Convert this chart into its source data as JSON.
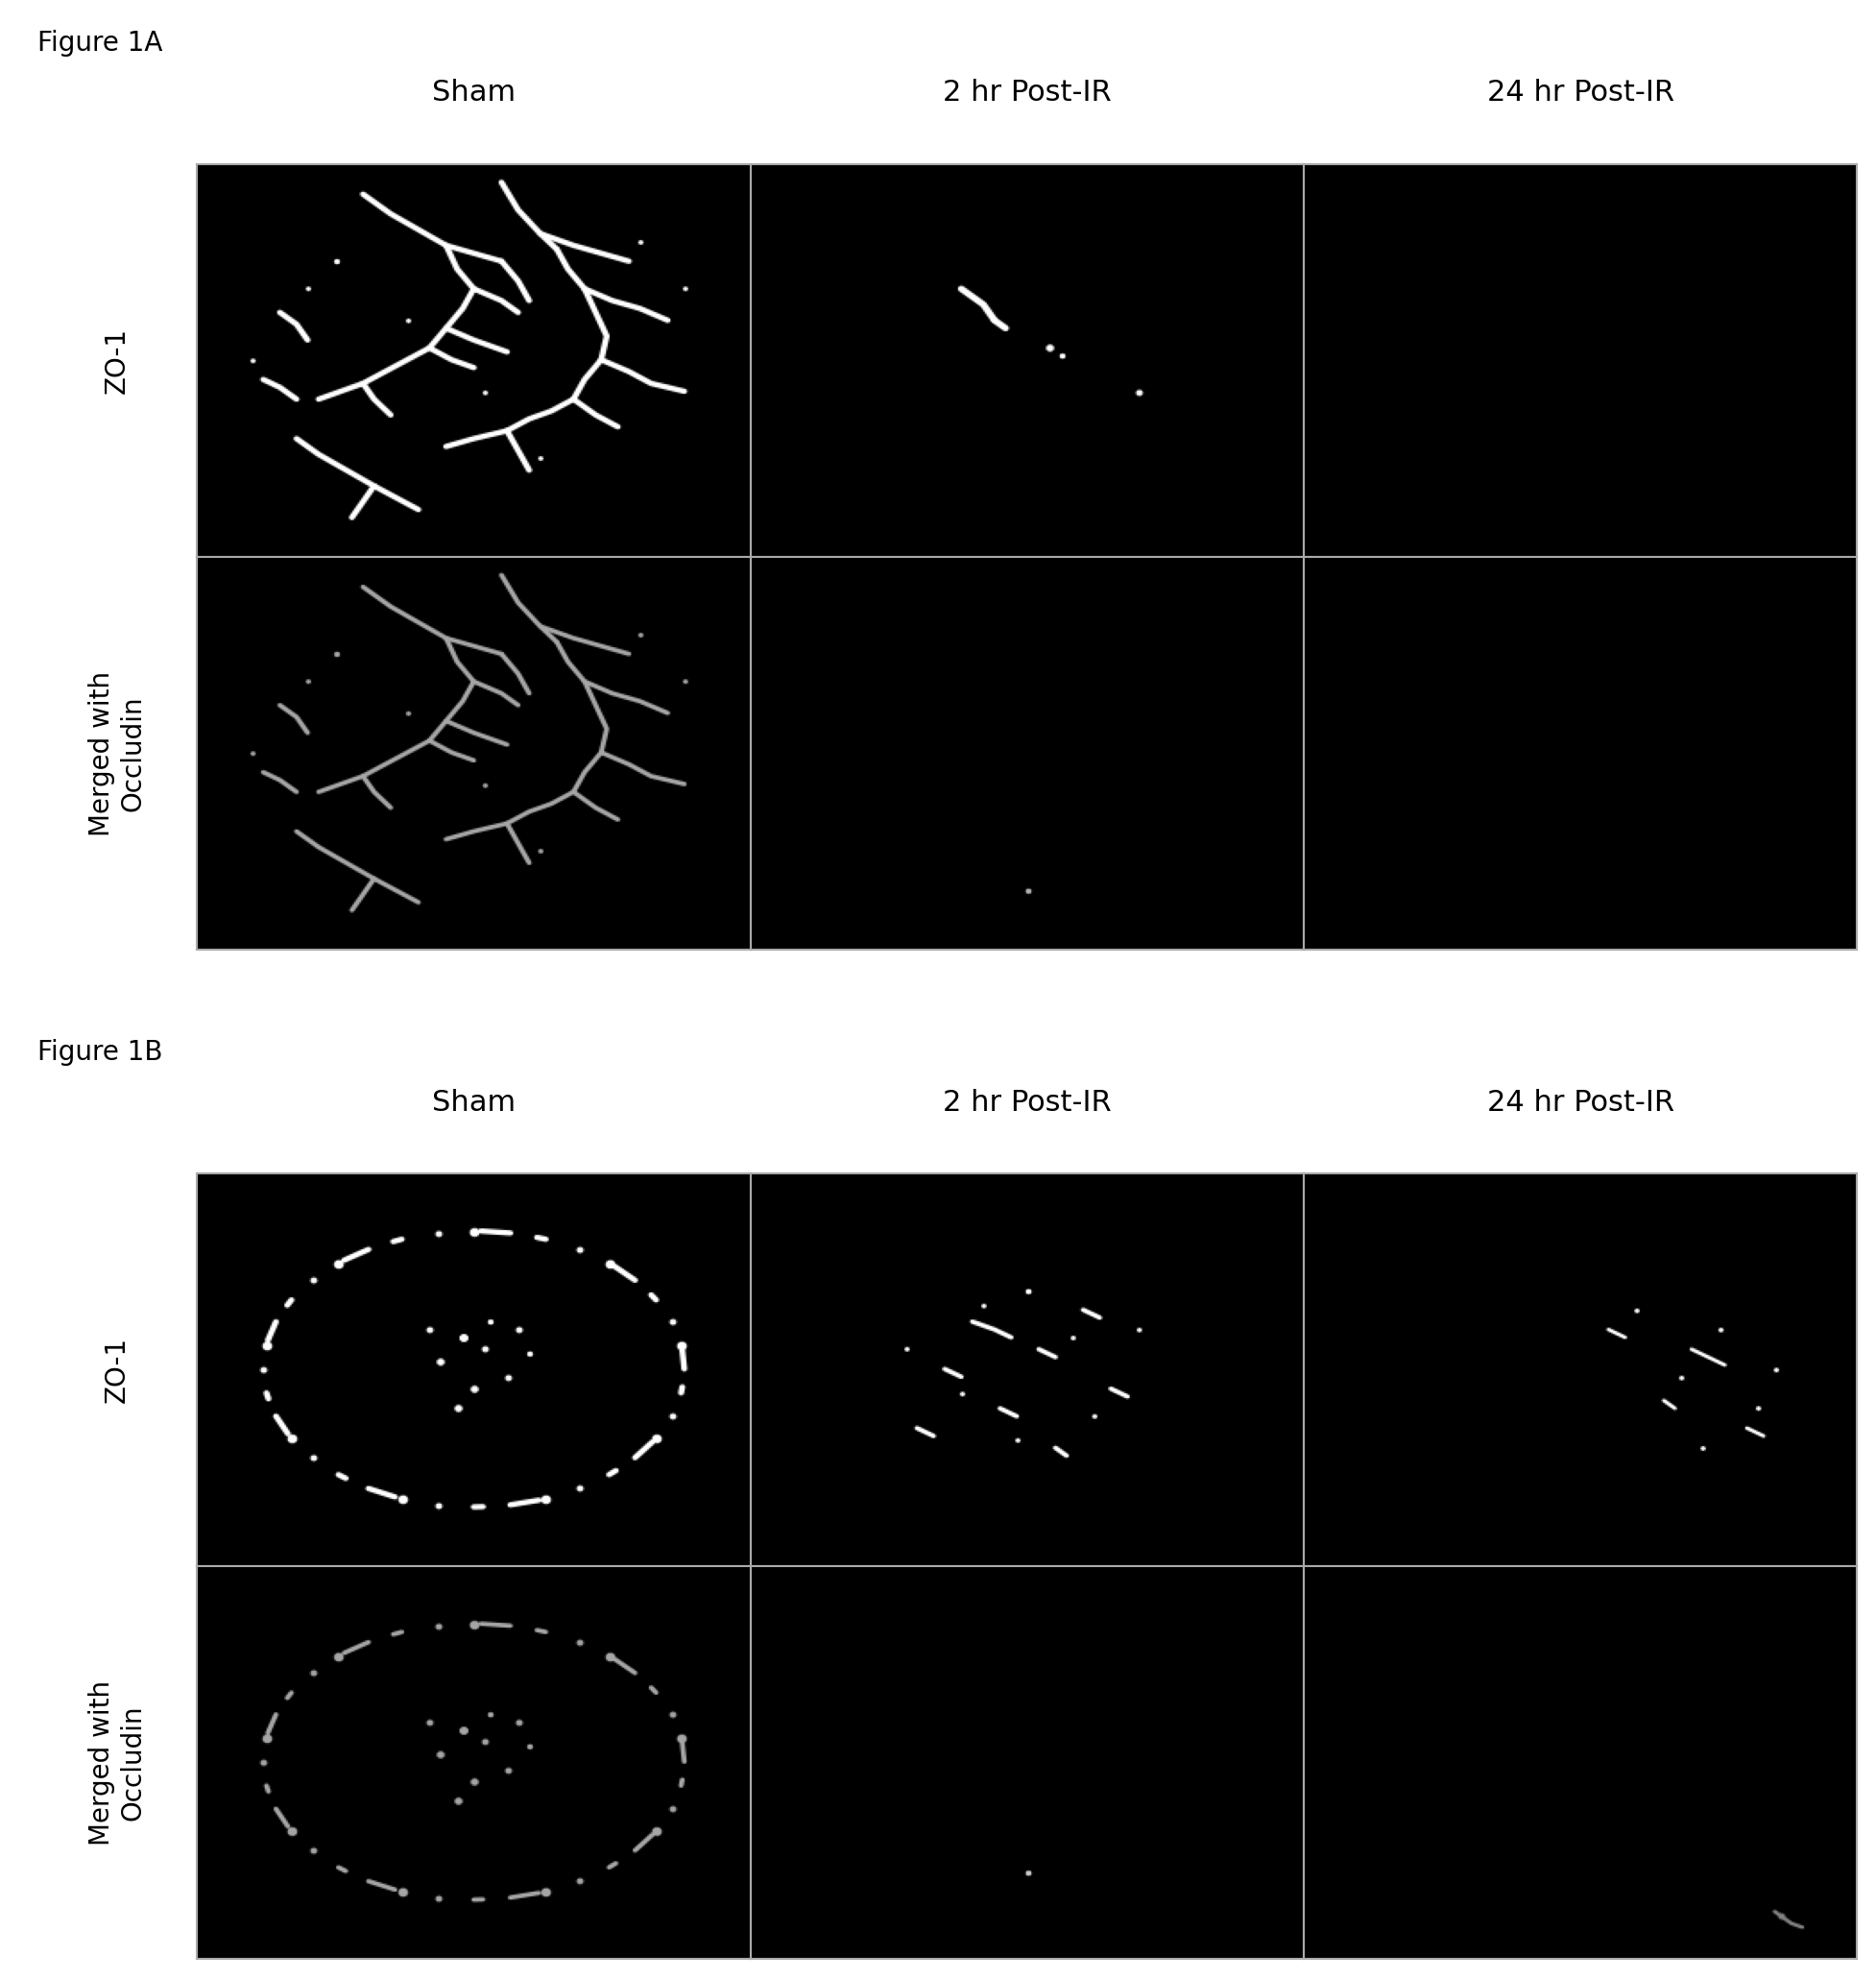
{
  "fig_width": 19.54,
  "fig_height": 20.61,
  "background_color": "#ffffff",
  "figure_label_A": "Figure 1A",
  "figure_label_B": "Figure 1B",
  "col_headers": [
    "Sham",
    "2 hr Post-IR",
    "24 hr Post-IR"
  ],
  "row_labels_A": [
    "ZO-1",
    "Merged with\nOccludin"
  ],
  "row_labels_B": [
    "ZO-1",
    "Merged with\nOccludin"
  ],
  "label_fontsize": 20,
  "header_fontsize": 22,
  "fig_label_fontsize": 20,
  "cell_border_color": "#aaaaaa",
  "cell_border_lw": 1.5
}
